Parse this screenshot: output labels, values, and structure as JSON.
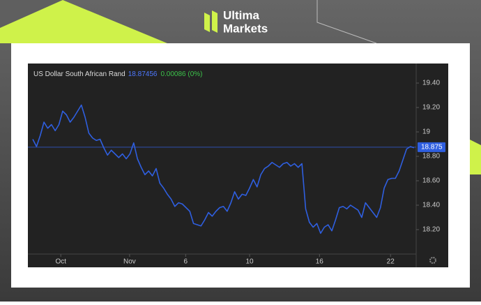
{
  "brand": {
    "line1": "Ultima",
    "line2": "Markets"
  },
  "chart_data": {
    "type": "line",
    "title": "US Dollar South African Rand",
    "last_price": 18.87456,
    "change": "0.00086 (0%)",
    "last_value": 18.875,
    "series": [
      {
        "name": "USD/ZAR",
        "color": "#2f5fe0",
        "values": [
          18.94,
          18.88,
          18.97,
          19.08,
          19.03,
          19.06,
          19.01,
          19.06,
          19.17,
          19.14,
          19.08,
          19.12,
          19.17,
          19.22,
          19.12,
          18.99,
          18.95,
          18.93,
          18.94,
          18.87,
          18.81,
          18.85,
          18.82,
          18.79,
          18.82,
          18.78,
          18.82,
          18.91,
          18.78,
          18.71,
          18.65,
          18.68,
          18.64,
          18.7,
          18.58,
          18.54,
          18.49,
          18.45,
          18.39,
          18.42,
          18.41,
          18.38,
          18.35,
          18.25,
          18.24,
          18.23,
          18.28,
          18.34,
          18.31,
          18.35,
          18.38,
          18.39,
          18.35,
          18.42,
          18.51,
          18.45,
          18.49,
          18.48,
          18.54,
          18.61,
          18.55,
          18.65,
          18.7,
          18.72,
          18.75,
          18.73,
          18.71,
          18.74,
          18.75,
          18.72,
          18.74,
          18.71,
          18.74,
          18.37,
          18.26,
          18.22,
          18.25,
          18.17,
          18.22,
          18.24,
          18.19,
          18.28,
          18.38,
          18.39,
          18.37,
          18.4,
          18.38,
          18.36,
          18.3,
          18.42,
          18.38,
          18.34,
          18.3,
          18.38,
          18.54,
          18.61,
          18.62,
          18.62,
          18.68,
          18.77,
          18.86,
          18.88,
          18.87
        ]
      }
    ],
    "xlim": [
      0,
      102
    ],
    "xticks": [
      {
        "value": 7.5,
        "label": "Oct"
      },
      {
        "value": 25.9,
        "label": "Nov"
      },
      {
        "value": 40.9,
        "label": "6"
      },
      {
        "value": 58.0,
        "label": "10"
      },
      {
        "value": 76.7,
        "label": "16"
      },
      {
        "value": 95.7,
        "label": "22"
      }
    ],
    "ylim": [
      18.0,
      19.56
    ],
    "yticks": [
      {
        "value": 18.2,
        "label": "18.20"
      },
      {
        "value": 18.4,
        "label": "18.40"
      },
      {
        "value": 18.6,
        "label": "18.60"
      },
      {
        "value": 18.8,
        "label": "18.80"
      },
      19,
      {
        "value": 19.2,
        "label": "19.20"
      },
      {
        "value": 19.4,
        "label": "19.40"
      }
    ]
  }
}
